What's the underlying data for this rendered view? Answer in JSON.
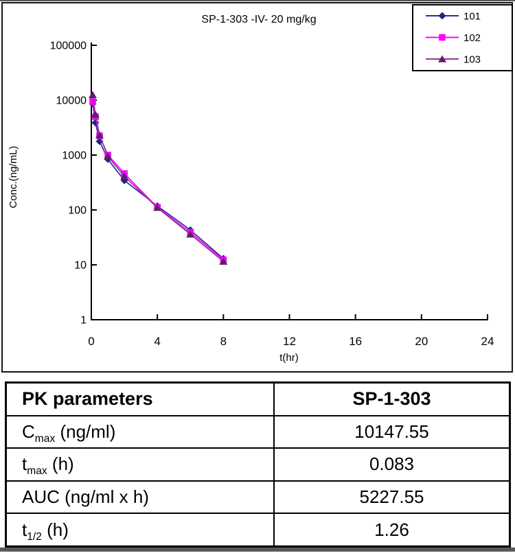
{
  "page": {
    "top_bar_color": "#58585a",
    "bottom_bar_color": "#58585a",
    "background_color": "#ffffff"
  },
  "chart_data": {
    "type": "line",
    "title": "SP-1-303 -IV- 20 mg/kg",
    "xlabel": "t(hr)",
    "ylabel": "Conc.(ng/mL)",
    "x_scale": "linear",
    "y_scale": "log",
    "xlim": [
      0,
      24
    ],
    "ylim": [
      1,
      100000
    ],
    "x_ticks": [
      0,
      4,
      8,
      12,
      16,
      20,
      24
    ],
    "y_ticks": [
      1,
      10,
      100,
      1000,
      10000,
      100000
    ],
    "grid": false,
    "legend_position": "top-right",
    "x": [
      0.083,
      0.25,
      0.5,
      1,
      2,
      4,
      6,
      8
    ],
    "series": [
      {
        "name": "101",
        "marker": "diamond",
        "line_color": "#2B2B9B",
        "marker_color": "#232387",
        "values": [
          8600,
          3900,
          1780,
          840,
          345,
          118,
          43,
          13
        ]
      },
      {
        "name": "102",
        "marker": "square",
        "line_color": "#FF00FF",
        "marker_color": "#FF00FF",
        "values": [
          9400,
          5000,
          2250,
          1000,
          460,
          112,
          39,
          12.3
        ]
      },
      {
        "name": "103",
        "marker": "triangle",
        "line_color": "#993399",
        "marker_color": "#5E2069",
        "values": [
          12500,
          5500,
          2300,
          950,
          410,
          110,
          36,
          11.5
        ]
      }
    ]
  },
  "table": {
    "headers": [
      "PK parameters",
      "SP-1-303"
    ],
    "rows": [
      {
        "param_pre": "C",
        "param_sub": "max",
        "param_post": " (ng/ml)",
        "value": "10147.55"
      },
      {
        "param_pre": "t",
        "param_sub": "max",
        "param_post": " (h)",
        "value": "0.083"
      },
      {
        "param_pre": "AUC",
        "param_sub": "",
        "param_post": " (ng/ml x h)",
        "value": "5227.55"
      },
      {
        "param_pre": "t",
        "param_sub": "1/2",
        "param_post": " (h)",
        "value": "1.26"
      }
    ]
  }
}
